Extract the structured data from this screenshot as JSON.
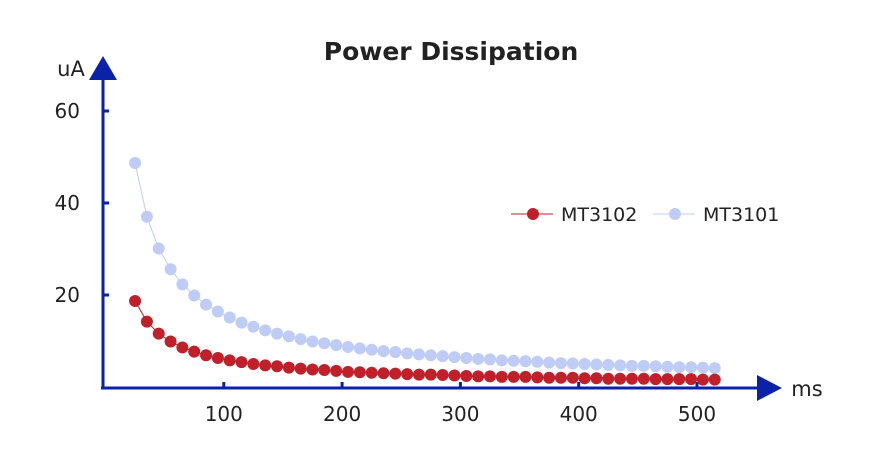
{
  "chart_data": {
    "type": "line",
    "title": "Power Dissipation",
    "xlabel": "ms",
    "ylabel": "uA",
    "xlim": [
      0,
      560
    ],
    "ylim": [
      0,
      60
    ],
    "x_ticks": [
      100,
      200,
      300,
      400,
      500
    ],
    "y_ticks": [
      20,
      40,
      60
    ],
    "grid": false,
    "legend_placement": "right",
    "axis_color": "#0b22a8",
    "x": [
      25,
      35,
      45,
      55,
      65,
      75,
      85,
      95,
      105,
      115,
      125,
      135,
      145,
      155,
      165,
      175,
      185,
      195,
      205,
      215,
      225,
      235,
      245,
      255,
      265,
      275,
      285,
      295,
      305,
      315,
      325,
      335,
      345,
      355,
      365,
      375,
      385,
      395,
      405,
      415,
      425,
      435,
      445,
      455,
      465,
      475,
      485,
      495,
      505,
      515
    ],
    "series": [
      {
        "name": "MT3102",
        "color": "#c0202a",
        "values": [
          18.7,
          14.2,
          11.6,
          9.9,
          8.6,
          7.7,
          6.9,
          6.3,
          5.8,
          5.4,
          5.0,
          4.7,
          4.5,
          4.2,
          4.0,
          3.8,
          3.7,
          3.5,
          3.3,
          3.2,
          3.1,
          3.0,
          2.9,
          2.8,
          2.7,
          2.7,
          2.6,
          2.5,
          2.4,
          2.3,
          2.3,
          2.2,
          2.2,
          2.2,
          2.1,
          2.0,
          2.0,
          2.0,
          1.9,
          1.9,
          1.8,
          1.8,
          1.8,
          1.8,
          1.7,
          1.7,
          1.7,
          1.7,
          1.6,
          1.6
        ]
      },
      {
        "name": "MT3101",
        "color": "#bfccf5",
        "values": [
          48.7,
          37.0,
          30.1,
          25.6,
          22.3,
          19.9,
          17.9,
          16.4,
          15.1,
          14.0,
          13.1,
          12.3,
          11.6,
          11.0,
          10.4,
          9.9,
          9.5,
          9.1,
          8.7,
          8.4,
          8.1,
          7.8,
          7.6,
          7.3,
          7.1,
          6.9,
          6.7,
          6.5,
          6.3,
          6.1,
          6.0,
          5.8,
          5.7,
          5.6,
          5.5,
          5.3,
          5.2,
          5.1,
          5.0,
          4.9,
          4.8,
          4.7,
          4.6,
          4.6,
          4.5,
          4.4,
          4.3,
          4.3,
          4.2,
          4.1
        ]
      }
    ]
  }
}
